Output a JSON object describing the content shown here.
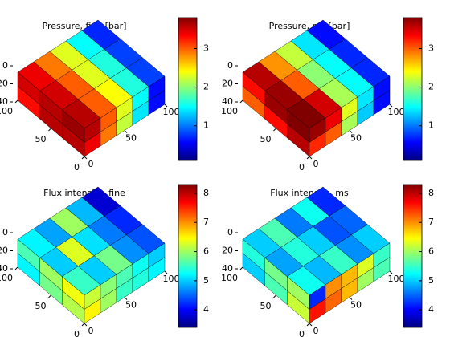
{
  "chart_data": [
    {
      "type": "voxel",
      "title": "Pressure, fine [bar]",
      "clim": [
        0.1,
        3.8
      ],
      "cticks": [
        1,
        2,
        3
      ],
      "xlim": [
        0,
        100
      ],
      "xticks": [
        0,
        50,
        100
      ],
      "ylim": [
        0,
        100
      ],
      "yticks": [
        0,
        50,
        100
      ],
      "zlim": [
        0,
        40
      ],
      "zticks": [
        0,
        20,
        40
      ],
      "top": [
        [
          3.4,
          2.9,
          2.3,
          1.5,
          0.7
        ],
        [
          3.5,
          3.0,
          2.3,
          1.6,
          0.8
        ],
        [
          3.6,
          3.0,
          2.4,
          1.6,
          0.8
        ]
      ],
      "left": [
        [
          3.5,
          3.6,
          3.7
        ],
        [
          3.3,
          3.6,
          3.6
        ]
      ],
      "right": [
        [
          3.6,
          3.0,
          2.3,
          1.5,
          0.6
        ],
        [
          3.4,
          2.9,
          2.2,
          1.4,
          0.6
        ]
      ]
    },
    {
      "type": "voxel",
      "title": "Pressure, ms [bar]",
      "clim": [
        0.1,
        3.8
      ],
      "cticks": [
        1,
        2,
        3
      ],
      "xlim": [
        0,
        100
      ],
      "xticks": [
        0,
        50,
        100
      ],
      "ylim": [
        0,
        100
      ],
      "yticks": [
        0,
        50,
        100
      ],
      "zlim": [
        0,
        40
      ],
      "zticks": [
        0,
        20,
        40
      ],
      "top": [
        [
          3.6,
          2.8,
          2.2,
          1.4,
          0.6
        ],
        [
          3.7,
          3.0,
          2.0,
          1.5,
          0.7
        ],
        [
          3.8,
          3.5,
          2.1,
          1.5,
          0.7
        ]
      ],
      "left": [
        [
          3.3,
          3.7,
          3.8
        ],
        [
          3.0,
          3.3,
          3.6
        ]
      ],
      "right": [
        [
          3.7,
          3.4,
          2.3,
          1.4,
          0.6
        ],
        [
          3.2,
          3.0,
          2.1,
          1.3,
          0.6
        ]
      ]
    },
    {
      "type": "voxel",
      "title": "Flux intensity, fine",
      "clim": [
        3.4,
        8.3
      ],
      "cticks": [
        4,
        5,
        6,
        7,
        8
      ],
      "xlim": [
        0,
        100
      ],
      "xticks": [
        0,
        50,
        100
      ],
      "ylim": [
        0,
        100
      ],
      "yticks": [
        0,
        50,
        100
      ],
      "zlim": [
        0,
        40
      ],
      "zticks": [
        0,
        20,
        40
      ],
      "top": [
        [
          5.2,
          4.8,
          6.0,
          4.9,
          3.8
        ],
        [
          5.0,
          6.3,
          5.1,
          4.6,
          4.2
        ],
        [
          5.5,
          5.0,
          5.8,
          4.7,
          4.4
        ]
      ],
      "left": [
        [
          5.6,
          6.0,
          6.4
        ],
        [
          5.2,
          5.8,
          6.1
        ]
      ],
      "right": [
        [
          6.2,
          5.9,
          5.6,
          5.3,
          5.0
        ],
        [
          6.5,
          6.0,
          5.5,
          5.4,
          5.2
        ]
      ]
    },
    {
      "type": "voxel",
      "title": "Flux intensity, ms",
      "clim": [
        3.4,
        8.3
      ],
      "cticks": [
        4,
        5,
        6,
        7,
        8
      ],
      "xlim": [
        0,
        100
      ],
      "xticks": [
        0,
        50,
        100
      ],
      "ylim": [
        0,
        100
      ],
      "yticks": [
        0,
        50,
        100
      ],
      "zlim": [
        0,
        40
      ],
      "zticks": [
        0,
        20,
        40
      ],
      "top": [
        [
          5.0,
          5.6,
          4.6,
          5.3,
          4.2
        ],
        [
          4.8,
          5.4,
          5.0,
          4.4,
          4.5
        ],
        [
          5.3,
          4.9,
          5.5,
          4.7,
          5.0
        ]
      ],
      "left": [
        [
          5.4,
          5.8,
          6.0
        ],
        [
          5.0,
          5.6,
          6.2
        ]
      ],
      "right": [
        [
          4.2,
          7.0,
          6.8,
          6.3,
          5.5
        ],
        [
          7.6,
          7.2,
          6.8,
          6.0,
          5.6
        ]
      ]
    }
  ]
}
